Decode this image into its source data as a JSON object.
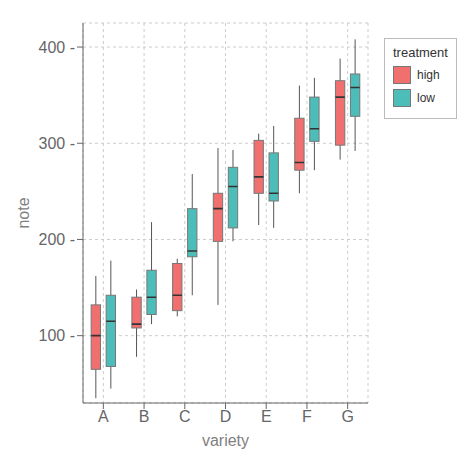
{
  "chart_data": {
    "type": "box",
    "xlabel": "variety",
    "ylabel": "note",
    "legend_title": "treatment",
    "legend": "right",
    "grid": true,
    "categories": [
      "A",
      "B",
      "C",
      "D",
      "E",
      "F",
      "G"
    ],
    "ylim": [
      30,
      425
    ],
    "yticks": [
      {
        "value": 100,
        "label": "100 -"
      },
      {
        "value": 200,
        "label": "200 -"
      },
      {
        "value": 300,
        "label": "300 -"
      },
      {
        "value": 400,
        "label": "400 -"
      }
    ],
    "series": [
      {
        "name": "high",
        "color": "#F07070",
        "values": [
          {
            "whislo": 35,
            "q1": 65,
            "med": 100,
            "q3": 132,
            "whishi": 162
          },
          {
            "whislo": 78,
            "q1": 108,
            "med": 112,
            "q3": 140,
            "whishi": 148
          },
          {
            "whislo": 120,
            "q1": 126,
            "med": 142,
            "q3": 175,
            "whishi": 180
          },
          {
            "whislo": 132,
            "q1": 198,
            "med": 232,
            "q3": 248,
            "whishi": 295
          },
          {
            "whislo": 215,
            "q1": 248,
            "med": 265,
            "q3": 303,
            "whishi": 310
          },
          {
            "whislo": 248,
            "q1": 272,
            "med": 280,
            "q3": 326,
            "whishi": 360
          },
          {
            "whislo": 283,
            "q1": 298,
            "med": 348,
            "q3": 365,
            "whishi": 388
          }
        ]
      },
      {
        "name": "low",
        "color": "#4DBDBA",
        "values": [
          {
            "whislo": 45,
            "q1": 68,
            "med": 115,
            "q3": 142,
            "whishi": 178
          },
          {
            "whislo": 112,
            "q1": 122,
            "med": 140,
            "q3": 168,
            "whishi": 218
          },
          {
            "whislo": 142,
            "q1": 182,
            "med": 188,
            "q3": 232,
            "whishi": 268
          },
          {
            "whislo": 198,
            "q1": 212,
            "med": 255,
            "q3": 275,
            "whishi": 293
          },
          {
            "whislo": 212,
            "q1": 240,
            "med": 248,
            "q3": 290,
            "whishi": 318
          },
          {
            "whislo": 272,
            "q1": 302,
            "med": 315,
            "q3": 348,
            "whishi": 368
          },
          {
            "whislo": 292,
            "q1": 328,
            "med": 358,
            "q3": 372,
            "whishi": 408
          }
        ]
      }
    ]
  }
}
